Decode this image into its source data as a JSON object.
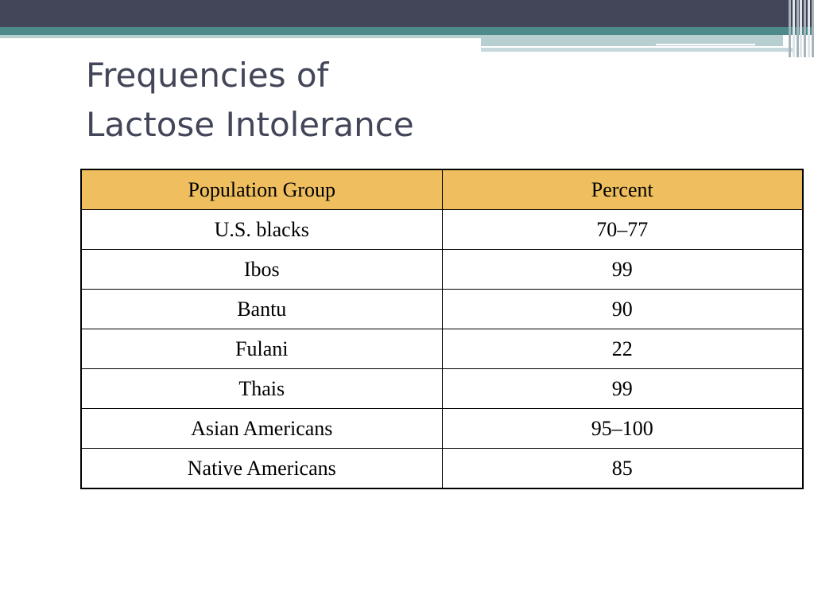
{
  "slide": {
    "title_lines": [
      "Frequencies of",
      "Lactose Intolerance"
    ]
  },
  "table": {
    "headers": [
      "Population Group",
      "Percent"
    ],
    "rows": [
      [
        "U.S. blacks",
        "70–77"
      ],
      [
        "Ibos",
        "99"
      ],
      [
        "Bantu",
        "90"
      ],
      [
        "Fulani",
        "22"
      ],
      [
        "Thais",
        "99"
      ],
      [
        "Asian Americans",
        "95–100"
      ],
      [
        "Native Americans",
        "85"
      ]
    ]
  },
  "colors": {
    "header_fill": "#efbf5f",
    "title_text": "#434658",
    "top_bar": "#434658",
    "accent_teal": "#4e8a8c"
  }
}
